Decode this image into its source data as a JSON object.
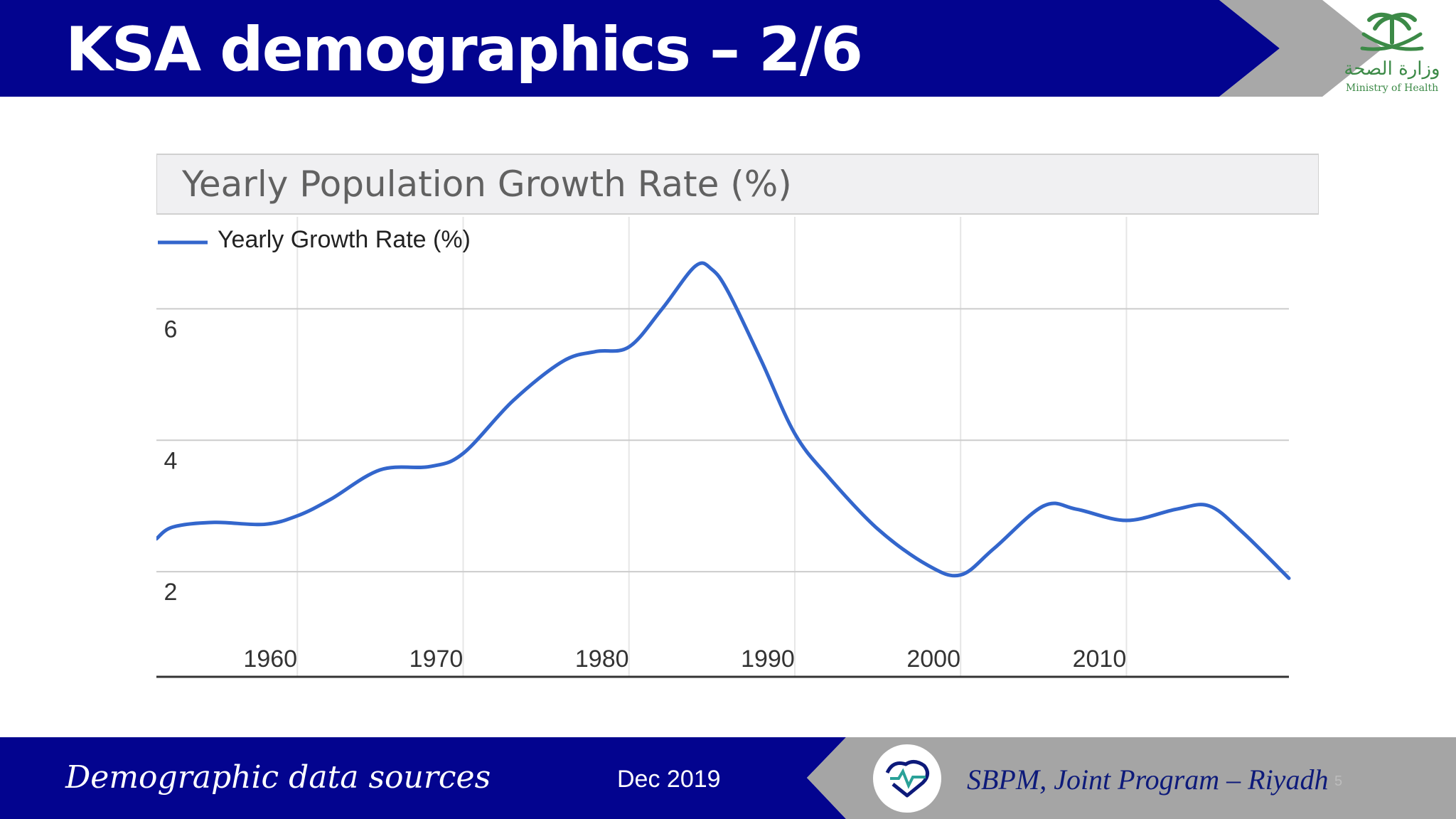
{
  "slide": {
    "title": "KSA demographics – 2/6",
    "logo_arabic": "وزارة الصحة",
    "logo_english": "Ministry of Health"
  },
  "footer": {
    "left_text": "Demographic data sources",
    "date": "Dec 2019",
    "right_text": "SBPM, Joint Program – Riyadh",
    "page_number": "5"
  },
  "colors": {
    "header_blue": "#03048f",
    "chevron_gray": "#a8a8a8",
    "footer_gray": "#a5a5a5",
    "line_blue": "#3366cc",
    "grid": "#cccccc",
    "title_panel": "#f0f0f2"
  },
  "chart_data": {
    "type": "line",
    "title": "Yearly Population Growth Rate (%)",
    "xlabel": "",
    "ylabel": "",
    "legend_position": "top-left",
    "grid": true,
    "xlim": [
      1951.5,
      2019.8
    ],
    "ylim": [
      0.4,
      7.4
    ],
    "x_ticks": [
      1960,
      1970,
      1980,
      1990,
      2000,
      2010
    ],
    "y_ticks": [
      2,
      4,
      6
    ],
    "series": [
      {
        "name": "Yearly Growth Rate (%)",
        "color": "#3366cc",
        "x": [
          1951.5,
          1952.5,
          1955,
          1958,
          1960,
          1962,
          1965,
          1968,
          1970,
          1973,
          1976,
          1978,
          1980,
          1982,
          1984,
          1985,
          1986,
          1988,
          1990,
          1992,
          1995,
          1998,
          2000,
          2002,
          2005,
          2007,
          2010,
          2013,
          2015,
          2017,
          2019.8
        ],
        "y": [
          2.5,
          2.68,
          2.75,
          2.72,
          2.85,
          3.1,
          3.55,
          3.6,
          3.8,
          4.6,
          5.2,
          5.35,
          5.42,
          6.0,
          6.65,
          6.6,
          6.25,
          5.2,
          4.1,
          3.45,
          2.65,
          2.1,
          1.95,
          2.35,
          3.0,
          2.95,
          2.78,
          2.95,
          3.0,
          2.6,
          1.9
        ]
      }
    ]
  }
}
